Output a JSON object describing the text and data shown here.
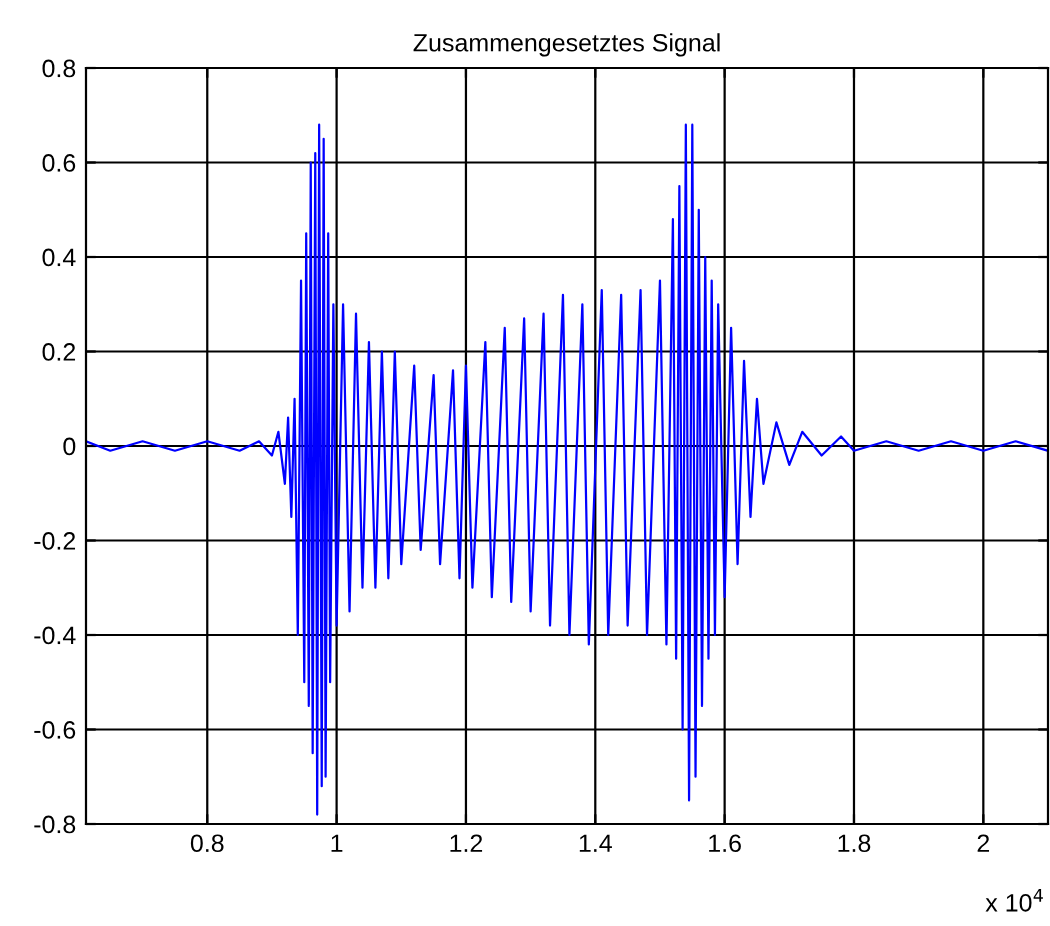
{
  "chart_data": {
    "type": "line",
    "title": "Zusammengesetztes Signal",
    "annotations": [
      "x 10$^{4}$"
    ],
    "x": [
      0.6125,
      0.65,
      0.7,
      0.75,
      0.8,
      0.85,
      0.88,
      0.9,
      0.91,
      0.92,
      0.925,
      0.93,
      0.935,
      0.94,
      0.945,
      0.95,
      0.953,
      0.957,
      0.96,
      0.963,
      0.967,
      0.97,
      0.973,
      0.977,
      0.98,
      0.983,
      0.987,
      0.99,
      0.995,
      1.0,
      1.01,
      1.02,
      1.03,
      1.04,
      1.05,
      1.06,
      1.07,
      1.08,
      1.09,
      1.1,
      1.12,
      1.13,
      1.15,
      1.16,
      1.18,
      1.19,
      1.2,
      1.21,
      1.23,
      1.24,
      1.26,
      1.27,
      1.29,
      1.3,
      1.32,
      1.33,
      1.35,
      1.36,
      1.38,
      1.39,
      1.41,
      1.42,
      1.44,
      1.45,
      1.47,
      1.48,
      1.5,
      1.51,
      1.52,
      1.525,
      1.53,
      1.535,
      1.54,
      1.545,
      1.55,
      1.555,
      1.56,
      1.565,
      1.57,
      1.575,
      1.58,
      1.585,
      1.59,
      1.6,
      1.61,
      1.62,
      1.63,
      1.64,
      1.65,
      1.66,
      1.68,
      1.7,
      1.72,
      1.75,
      1.78,
      1.8,
      1.85,
      1.9,
      1.95,
      2.0,
      2.05,
      2.1
    ],
    "series": [
      {
        "color": "#0000ff",
        "values": [
          0.01,
          -0.01,
          0.01,
          -0.01,
          0.01,
          -0.01,
          0.01,
          -0.02,
          0.03,
          -0.08,
          0.06,
          -0.15,
          0.1,
          -0.4,
          0.35,
          -0.5,
          0.45,
          -0.55,
          0.6,
          -0.65,
          0.62,
          -0.78,
          0.68,
          -0.72,
          0.65,
          -0.7,
          0.45,
          -0.5,
          0.3,
          -0.38,
          0.3,
          -0.35,
          0.28,
          -0.3,
          0.22,
          -0.3,
          0.2,
          -0.28,
          0.2,
          -0.25,
          0.17,
          -0.22,
          0.15,
          -0.25,
          0.16,
          -0.28,
          0.17,
          -0.3,
          0.22,
          -0.32,
          0.25,
          -0.33,
          0.27,
          -0.35,
          0.28,
          -0.38,
          0.32,
          -0.4,
          0.3,
          -0.42,
          0.33,
          -0.4,
          0.32,
          -0.38,
          0.33,
          -0.4,
          0.35,
          -0.42,
          0.48,
          -0.45,
          0.55,
          -0.6,
          0.68,
          -0.75,
          0.68,
          -0.7,
          0.5,
          -0.55,
          0.4,
          -0.45,
          0.35,
          -0.4,
          0.3,
          -0.32,
          0.25,
          -0.25,
          0.18,
          -0.15,
          0.1,
          -0.08,
          0.05,
          -0.04,
          0.03,
          -0.02,
          0.02,
          -0.01,
          0.01,
          -0.01,
          0.01,
          -0.01,
          0.01,
          -0.01
        ]
      }
    ],
    "xlim": [
      0.6125,
      2.1
    ],
    "ylim": [
      -0.8,
      0.8
    ],
    "xticks": [
      0.8,
      1,
      1.2,
      1.4,
      1.6,
      1.8,
      2
    ],
    "yticks": [
      -0.8,
      -0.6,
      -0.4,
      -0.2,
      0,
      0.2,
      0.4,
      0.6,
      0.8
    ],
    "grid": true,
    "legend": false,
    "marker": "none",
    "line_style": "solid"
  }
}
